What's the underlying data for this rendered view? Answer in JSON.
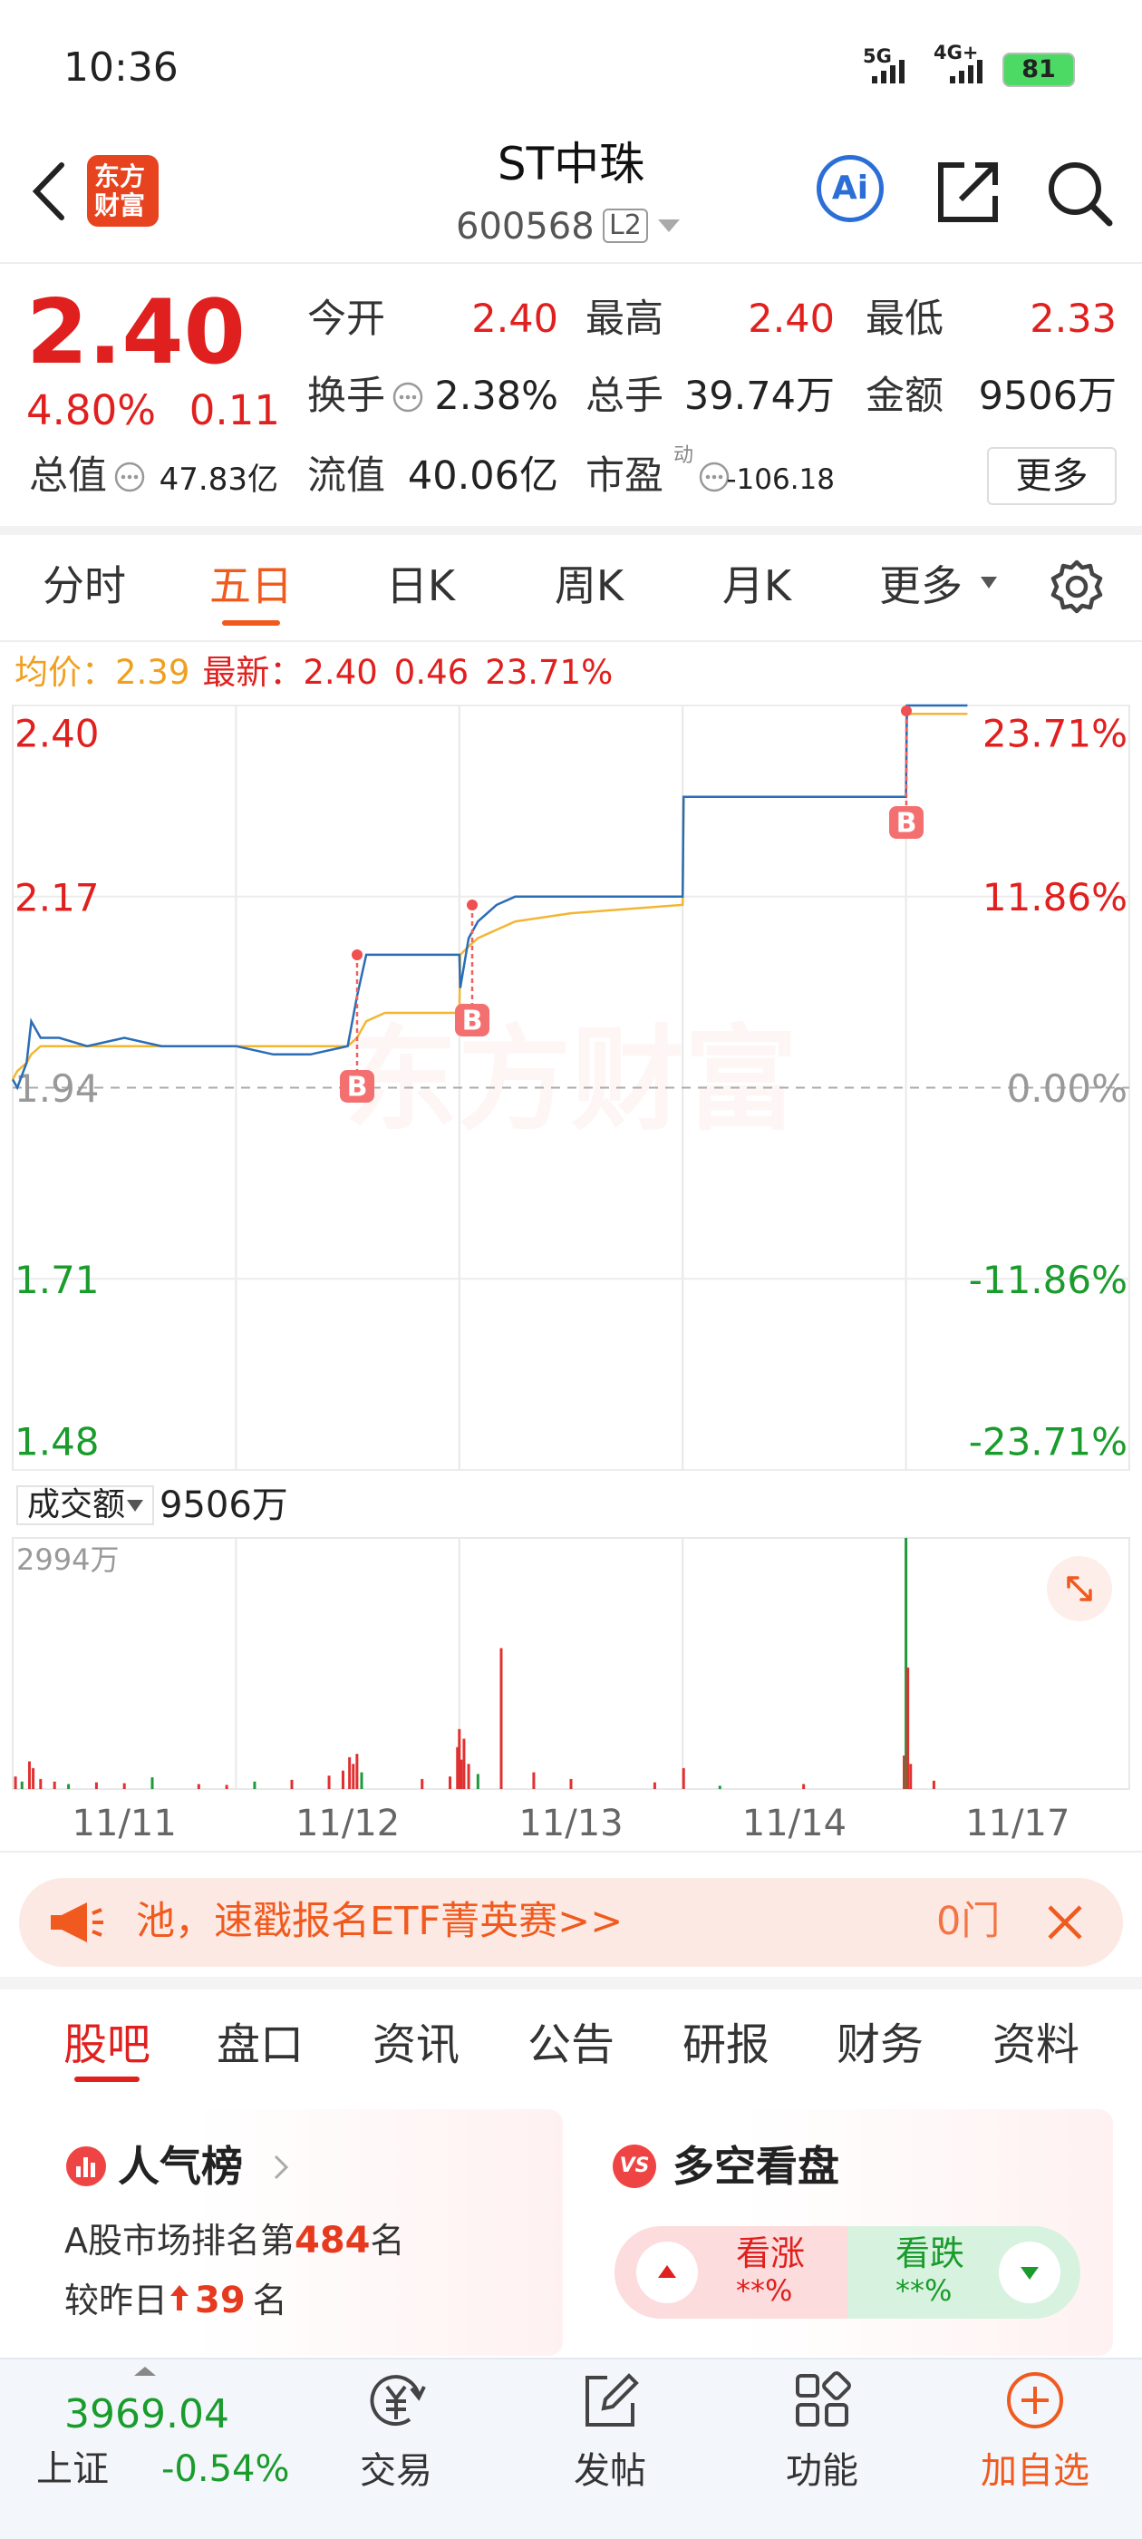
{
  "status": {
    "time": "10:36",
    "net1": "5G",
    "net2": "4G+",
    "battery": "81"
  },
  "header": {
    "logo": [
      "东方",
      "财富"
    ],
    "title": "ST中珠",
    "code": "600568",
    "badge": "L2",
    "ai": "Ai"
  },
  "quote": {
    "price": "2.40",
    "change_pct": "4.80%",
    "change": "0.11",
    "stats": [
      [
        {
          "label": "今开",
          "value": "2.40"
        },
        {
          "label": "最高",
          "value": "2.40"
        },
        {
          "label": "最低",
          "value": "2.33"
        }
      ],
      [
        {
          "label": "换手",
          "value": "2.38%"
        },
        {
          "label": "总手",
          "value": "39.74万"
        },
        {
          "label": "金额",
          "value": "9506万"
        }
      ],
      [
        {
          "label": "总值",
          "value": "47.83亿"
        },
        {
          "label": "流值",
          "value": "40.06亿"
        },
        {
          "label": "市盈",
          "sup": "动",
          "value": "-106.18"
        }
      ]
    ],
    "more": "更多"
  },
  "tabs": {
    "items": [
      "分时",
      "五日",
      "日K",
      "周K",
      "月K",
      "更多"
    ]
  },
  "legend": {
    "avg_label": "均价：",
    "avg": "2.39",
    "last_label": "最新：",
    "last": "2.40",
    "change": "0.46",
    "change_pct": "23.71%"
  },
  "chart_data": [
    {
      "type": "line",
      "watermark": "东方财富",
      "markers": [
        "B",
        "B",
        "B"
      ],
      "x": [
        0,
        5,
        15,
        20,
        30,
        50,
        80,
        120,
        160,
        200,
        240,
        280,
        320,
        360,
        370,
        380,
        400,
        480,
        481,
        490,
        500,
        520,
        540,
        600,
        720,
        721,
        960,
        961,
        1026
      ],
      "xlim": [
        0,
        1200
      ],
      "series": [
        {
          "color": "#2a6db5",
          "values": [
            1.95,
            1.94,
            1.97,
            2.02,
            2.0,
            2.0,
            1.99,
            2.0,
            1.99,
            1.99,
            1.99,
            1.98,
            1.98,
            1.99,
            2.05,
            2.1,
            2.1,
            2.1,
            2.06,
            2.12,
            2.14,
            2.16,
            2.17,
            2.17,
            2.17,
            2.29,
            2.29,
            2.4,
            2.4
          ]
        },
        {
          "color": "#f2b632",
          "values": [
            1.95,
            1.96,
            1.97,
            1.98,
            1.99,
            1.99,
            1.99,
            1.99,
            1.99,
            1.99,
            1.99,
            1.99,
            1.99,
            1.99,
            2.0,
            2.02,
            2.03,
            2.03,
            2.1,
            2.11,
            2.12,
            2.13,
            2.14,
            2.15,
            2.16,
            2.29,
            2.29,
            2.39,
            2.39
          ]
        }
      ],
      "ylim": [
        1.48,
        2.4
      ],
      "yticks": [
        {
          "value": 2.4,
          "label": "2.40"
        },
        {
          "value": 2.17,
          "label": "2.17"
        },
        {
          "value": 1.94,
          "label": "1.94"
        },
        {
          "value": 1.71,
          "label": "1.71"
        },
        {
          "value": 1.48,
          "label": "1.48"
        }
      ],
      "y2lim": [
        -23.71,
        23.71
      ],
      "y2ticks": [
        {
          "value": 23.71,
          "label": "23.71%"
        },
        {
          "value": 11.86,
          "label": "11.86%"
        },
        {
          "value": 0,
          "label": "0.00%"
        },
        {
          "value": -11.86,
          "label": "-11.86%"
        },
        {
          "value": -23.71,
          "label": "-23.71%"
        }
      ],
      "grid": true
    },
    {
      "type": "bar",
      "title": "成交额",
      "total": "9506万",
      "x": [
        3,
        10,
        18,
        22,
        30,
        45,
        60,
        90,
        120,
        150,
        200,
        230,
        260,
        300,
        340,
        355,
        362,
        366,
        370,
        375,
        440,
        470,
        478,
        480,
        482,
        485,
        490,
        500,
        525,
        560,
        600,
        690,
        721,
        760,
        850,
        958,
        960,
        962,
        965,
        990
      ],
      "values": [
        150,
        90,
        330,
        250,
        120,
        90,
        60,
        80,
        70,
        140,
        60,
        50,
        90,
        110,
        160,
        220,
        380,
        300,
        420,
        200,
        120,
        150,
        500,
        715,
        350,
        600,
        300,
        180,
        1680,
        200,
        120,
        80,
        250,
        40,
        60,
        400,
        2994,
        1449,
        300,
        100
      ],
      "colors": [
        "#e03030",
        "#1e9a3a",
        "#e03030",
        "#e03030",
        "#e03030",
        "#e03030",
        "#1e9a3a",
        "#e03030",
        "#e03030",
        "#1e9a3a",
        "#e03030",
        "#e03030",
        "#1e9a3a",
        "#e03030",
        "#e03030",
        "#e03030",
        "#e03030",
        "#e03030",
        "#e03030",
        "#1e9a3a",
        "#e03030",
        "#e03030",
        "#e03030",
        "#e03030",
        "#e03030",
        "#e03030",
        "#e03030",
        "#1e9a3a",
        "#e03030",
        "#e03030",
        "#e03030",
        "#e03030",
        "#e03030",
        "#1e9a3a",
        "#e03030",
        "#e03030",
        "#1e9a3a",
        "#e03030",
        "#e03030",
        "#e03030"
      ],
      "xlim": [
        0,
        1200
      ],
      "ylim": [
        0,
        2994
      ],
      "yticks": [
        {
          "value": 2994,
          "label": "2994万"
        }
      ],
      "x_labels": [
        "11/11",
        "11/12",
        "11/13",
        "11/14",
        "11/17"
      ]
    }
  ],
  "banner": {
    "text": "池，速戳报名ETF菁英赛>>",
    "right": "0门"
  },
  "sections": {
    "items": [
      "股吧",
      "盘口",
      "资讯",
      "公告",
      "研报",
      "财务",
      "资料"
    ]
  },
  "cards": {
    "rank": {
      "title": "人气榜",
      "prefix": "A股市场排名第",
      "rank": "484",
      "suffix": "名",
      "delta_prefix": "较昨日",
      "delta": "39",
      "delta_suffix": "名"
    },
    "sentiment": {
      "badge": "VS",
      "title": "多空看盘",
      "up": "看涨",
      "up_value": "**%",
      "down": "看跌",
      "down_value": "**%"
    }
  },
  "nav": {
    "index_value": "3969.04",
    "index_name": "上证",
    "index_change": "-0.54%",
    "items": [
      "交易",
      "发帖",
      "功能",
      "加自选"
    ]
  }
}
